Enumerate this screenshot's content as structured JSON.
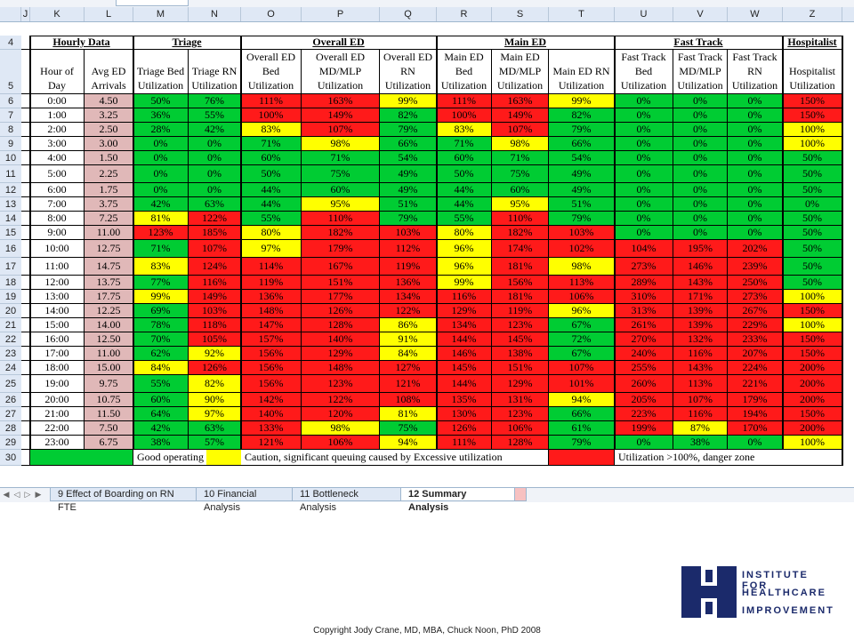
{
  "column_letters": [
    "J",
    "K",
    "L",
    "M",
    "N",
    "O",
    "P",
    "Q",
    "R",
    "S",
    "T",
    "U",
    "V",
    "W",
    "Z"
  ],
  "row_numbers": [
    "4",
    "5",
    "6",
    "7",
    "8",
    "9",
    "10",
    "11",
    "12",
    "13",
    "14",
    "15",
    "16",
    "17",
    "18",
    "19",
    "20",
    "21",
    "22",
    "23",
    "24",
    "25",
    "26",
    "27",
    "28",
    "29",
    "30"
  ],
  "group_headers": {
    "hourly": "Hourly Data",
    "triage": "Triage",
    "overall": "Overall ED",
    "main": "Main ED",
    "fast": "Fast Track",
    "hosp": "Hospitalist"
  },
  "column_headers": [
    "Hour of Day",
    "Avg ED Arrivals",
    "Triage Bed Utilization",
    "Triage RN Utilization",
    "Overall ED Bed Utilization",
    "Overall ED MD/MLP Utilization",
    "Overall ED RN Utilization",
    "Main ED Bed Utilization",
    "Main ED MD/MLP Utilization",
    "Main ED RN Utilization",
    "Fast Track Bed Utilization",
    "Fast Track MD/MLP Utilization",
    "Fast Track RN Utilization",
    "Hospitalist Utilization"
  ],
  "rows": [
    {
      "values": [
        "0:00",
        "4.50",
        "50%",
        "76%",
        "111%",
        "163%",
        "99%",
        "111%",
        "163%",
        "99%",
        "0%",
        "0%",
        "0%",
        "150%"
      ],
      "colors": [
        "w",
        "pk",
        "g",
        "g",
        "r",
        "r",
        "y",
        "r",
        "r",
        "y",
        "g",
        "g",
        "g",
        "r"
      ]
    },
    {
      "values": [
        "1:00",
        "3.25",
        "36%",
        "55%",
        "100%",
        "149%",
        "82%",
        "100%",
        "149%",
        "82%",
        "0%",
        "0%",
        "0%",
        "150%"
      ],
      "colors": [
        "w",
        "pk",
        "g",
        "g",
        "r",
        "r",
        "g",
        "r",
        "r",
        "g",
        "g",
        "g",
        "g",
        "r"
      ]
    },
    {
      "values": [
        "2:00",
        "2.50",
        "28%",
        "42%",
        "83%",
        "107%",
        "79%",
        "83%",
        "107%",
        "79%",
        "0%",
        "0%",
        "0%",
        "100%"
      ],
      "colors": [
        "w",
        "pk",
        "g",
        "g",
        "y",
        "r",
        "g",
        "y",
        "r",
        "g",
        "g",
        "g",
        "g",
        "y"
      ]
    },
    {
      "values": [
        "3:00",
        "3.00",
        "0%",
        "0%",
        "71%",
        "98%",
        "66%",
        "71%",
        "98%",
        "66%",
        "0%",
        "0%",
        "0%",
        "100%"
      ],
      "colors": [
        "w",
        "pk",
        "g",
        "g",
        "g",
        "y",
        "g",
        "g",
        "y",
        "g",
        "g",
        "g",
        "g",
        "y"
      ]
    },
    {
      "values": [
        "4:00",
        "1.50",
        "0%",
        "0%",
        "60%",
        "71%",
        "54%",
        "60%",
        "71%",
        "54%",
        "0%",
        "0%",
        "0%",
        "50%"
      ],
      "colors": [
        "w",
        "pk",
        "g",
        "g",
        "g",
        "g",
        "g",
        "g",
        "g",
        "g",
        "g",
        "g",
        "g",
        "g"
      ]
    },
    {
      "values": [
        "5:00",
        "2.25",
        "0%",
        "0%",
        "50%",
        "75%",
        "49%",
        "50%",
        "75%",
        "49%",
        "0%",
        "0%",
        "0%",
        "50%"
      ],
      "colors": [
        "w",
        "pk",
        "g",
        "g",
        "g",
        "g",
        "g",
        "g",
        "g",
        "g",
        "g",
        "g",
        "g",
        "g"
      ]
    },
    {
      "values": [
        "6:00",
        "1.75",
        "0%",
        "0%",
        "44%",
        "60%",
        "49%",
        "44%",
        "60%",
        "49%",
        "0%",
        "0%",
        "0%",
        "50%"
      ],
      "colors": [
        "w",
        "pk",
        "g",
        "g",
        "g",
        "g",
        "g",
        "g",
        "g",
        "g",
        "g",
        "g",
        "g",
        "g"
      ]
    },
    {
      "values": [
        "7:00",
        "3.75",
        "42%",
        "63%",
        "44%",
        "95%",
        "51%",
        "44%",
        "95%",
        "51%",
        "0%",
        "0%",
        "0%",
        "0%"
      ],
      "colors": [
        "w",
        "pk",
        "g",
        "g",
        "g",
        "y",
        "g",
        "g",
        "y",
        "g",
        "g",
        "g",
        "g",
        "g"
      ]
    },
    {
      "values": [
        "8:00",
        "7.25",
        "81%",
        "122%",
        "55%",
        "110%",
        "79%",
        "55%",
        "110%",
        "79%",
        "0%",
        "0%",
        "0%",
        "50%"
      ],
      "colors": [
        "w",
        "pk",
        "y",
        "r",
        "g",
        "r",
        "g",
        "g",
        "r",
        "g",
        "g",
        "g",
        "g",
        "g"
      ]
    },
    {
      "values": [
        "9:00",
        "11.00",
        "123%",
        "185%",
        "80%",
        "182%",
        "103%",
        "80%",
        "182%",
        "103%",
        "0%",
        "0%",
        "0%",
        "50%"
      ],
      "colors": [
        "w",
        "pk",
        "r",
        "r",
        "y",
        "r",
        "r",
        "y",
        "r",
        "r",
        "g",
        "g",
        "g",
        "g"
      ]
    },
    {
      "values": [
        "10:00",
        "12.75",
        "71%",
        "107%",
        "97%",
        "179%",
        "112%",
        "96%",
        "174%",
        "102%",
        "104%",
        "195%",
        "202%",
        "50%"
      ],
      "colors": [
        "w",
        "pk",
        "g",
        "r",
        "y",
        "r",
        "r",
        "y",
        "r",
        "r",
        "r",
        "r",
        "r",
        "g"
      ]
    },
    {
      "values": [
        "11:00",
        "14.75",
        "83%",
        "124%",
        "114%",
        "167%",
        "119%",
        "96%",
        "181%",
        "98%",
        "273%",
        "146%",
        "239%",
        "50%"
      ],
      "colors": [
        "w",
        "pk",
        "y",
        "r",
        "r",
        "r",
        "r",
        "y",
        "r",
        "y",
        "r",
        "r",
        "r",
        "g"
      ]
    },
    {
      "values": [
        "12:00",
        "13.75",
        "77%",
        "116%",
        "119%",
        "151%",
        "136%",
        "99%",
        "156%",
        "113%",
        "289%",
        "143%",
        "250%",
        "50%"
      ],
      "colors": [
        "w",
        "pk",
        "g",
        "r",
        "r",
        "r",
        "r",
        "y",
        "r",
        "r",
        "r",
        "r",
        "r",
        "g"
      ]
    },
    {
      "values": [
        "13:00",
        "17.75",
        "99%",
        "149%",
        "136%",
        "177%",
        "134%",
        "116%",
        "181%",
        "106%",
        "310%",
        "171%",
        "273%",
        "100%"
      ],
      "colors": [
        "w",
        "pk",
        "y",
        "r",
        "r",
        "r",
        "r",
        "r",
        "r",
        "r",
        "r",
        "r",
        "r",
        "y"
      ]
    },
    {
      "values": [
        "14:00",
        "12.25",
        "69%",
        "103%",
        "148%",
        "126%",
        "122%",
        "129%",
        "119%",
        "96%",
        "313%",
        "139%",
        "267%",
        "150%"
      ],
      "colors": [
        "w",
        "pk",
        "g",
        "r",
        "r",
        "r",
        "r",
        "r",
        "r",
        "y",
        "r",
        "r",
        "r",
        "r"
      ]
    },
    {
      "values": [
        "15:00",
        "14.00",
        "78%",
        "118%",
        "147%",
        "128%",
        "86%",
        "134%",
        "123%",
        "67%",
        "261%",
        "139%",
        "229%",
        "100%"
      ],
      "colors": [
        "w",
        "pk",
        "g",
        "r",
        "r",
        "r",
        "y",
        "r",
        "r",
        "g",
        "r",
        "r",
        "r",
        "y"
      ]
    },
    {
      "values": [
        "16:00",
        "12.50",
        "70%",
        "105%",
        "157%",
        "140%",
        "91%",
        "144%",
        "145%",
        "72%",
        "270%",
        "132%",
        "233%",
        "150%"
      ],
      "colors": [
        "w",
        "pk",
        "g",
        "r",
        "r",
        "r",
        "y",
        "r",
        "r",
        "g",
        "r",
        "r",
        "r",
        "r"
      ]
    },
    {
      "values": [
        "17:00",
        "11.00",
        "62%",
        "92%",
        "156%",
        "129%",
        "84%",
        "146%",
        "138%",
        "67%",
        "240%",
        "116%",
        "207%",
        "150%"
      ],
      "colors": [
        "w",
        "pk",
        "g",
        "y",
        "r",
        "r",
        "y",
        "r",
        "r",
        "g",
        "r",
        "r",
        "r",
        "r"
      ]
    },
    {
      "values": [
        "18:00",
        "15.00",
        "84%",
        "126%",
        "156%",
        "148%",
        "127%",
        "145%",
        "151%",
        "107%",
        "255%",
        "143%",
        "224%",
        "200%"
      ],
      "colors": [
        "w",
        "pk",
        "y",
        "r",
        "r",
        "r",
        "r",
        "r",
        "r",
        "r",
        "r",
        "r",
        "r",
        "r"
      ]
    },
    {
      "values": [
        "19:00",
        "9.75",
        "55%",
        "82%",
        "156%",
        "123%",
        "121%",
        "144%",
        "129%",
        "101%",
        "260%",
        "113%",
        "221%",
        "200%"
      ],
      "colors": [
        "w",
        "pk",
        "g",
        "y",
        "r",
        "r",
        "r",
        "r",
        "r",
        "r",
        "r",
        "r",
        "r",
        "r"
      ]
    },
    {
      "values": [
        "20:00",
        "10.75",
        "60%",
        "90%",
        "142%",
        "122%",
        "108%",
        "135%",
        "131%",
        "94%",
        "205%",
        "107%",
        "179%",
        "200%"
      ],
      "colors": [
        "w",
        "pk",
        "g",
        "y",
        "r",
        "r",
        "r",
        "r",
        "r",
        "y",
        "r",
        "r",
        "r",
        "r"
      ]
    },
    {
      "values": [
        "21:00",
        "11.50",
        "64%",
        "97%",
        "140%",
        "120%",
        "81%",
        "130%",
        "123%",
        "66%",
        "223%",
        "116%",
        "194%",
        "150%"
      ],
      "colors": [
        "w",
        "pk",
        "g",
        "y",
        "r",
        "r",
        "y",
        "r",
        "r",
        "g",
        "r",
        "r",
        "r",
        "r"
      ]
    },
    {
      "values": [
        "22:00",
        "7.50",
        "42%",
        "63%",
        "133%",
        "98%",
        "75%",
        "126%",
        "106%",
        "61%",
        "199%",
        "87%",
        "170%",
        "200%"
      ],
      "colors": [
        "w",
        "pk",
        "g",
        "g",
        "r",
        "y",
        "g",
        "r",
        "r",
        "g",
        "r",
        "y",
        "r",
        "r"
      ]
    },
    {
      "values": [
        "23:00",
        "6.75",
        "38%",
        "57%",
        "121%",
        "106%",
        "94%",
        "111%",
        "128%",
        "79%",
        "0%",
        "38%",
        "0%",
        "100%"
      ],
      "colors": [
        "w",
        "pk",
        "g",
        "g",
        "r",
        "r",
        "y",
        "r",
        "r",
        "g",
        "g",
        "g",
        "g",
        "y"
      ]
    }
  ],
  "legend": {
    "good": "Good operating zone",
    "caution": "Caution, significant queuing caused by Excessive utilization",
    "danger": "Utilization >100%, danger zone"
  },
  "sheet_tabs": [
    {
      "label": "9 Effect of Boarding on RN FTE",
      "active": false
    },
    {
      "label": "10 Financial Analysis",
      "active": false
    },
    {
      "label": "11 Bottleneck Analysis",
      "active": false
    },
    {
      "label": "12 Summary Analysis",
      "active": true
    }
  ],
  "logo": {
    "line1": "INSTITUTE FOR",
    "line2": "HEALTHCARE",
    "line3": "IMPROVEMENT"
  },
  "copyright": "Copyright Jody Crane, MD, MBA, Chuck Noon, PhD 2008",
  "colors": {
    "green": "#00cc33",
    "yellow": "#ffff00",
    "red": "#ff1a1a",
    "pink": "#e0b8b8",
    "logo_blue": "#1b2a6b"
  }
}
